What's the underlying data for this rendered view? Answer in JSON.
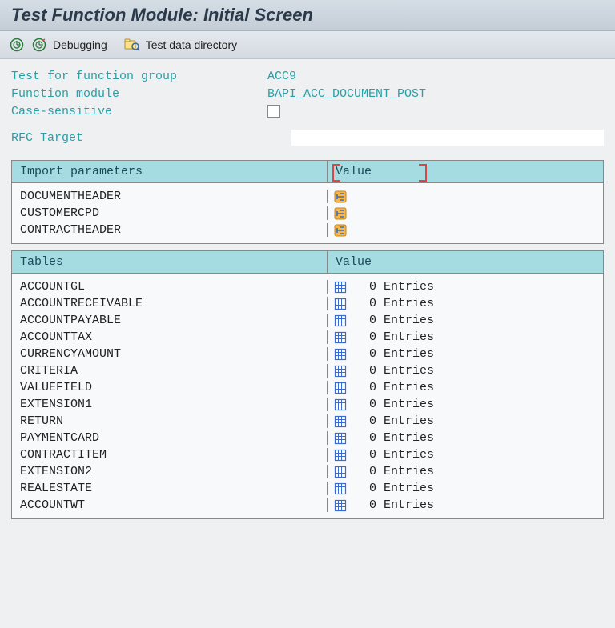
{
  "title": "Test Function Module: Initial Screen",
  "toolbar": {
    "debugging_label": "Debugging",
    "testdata_label": "Test data directory"
  },
  "form": {
    "group_label": "Test for function group",
    "group_value": "ACC9",
    "module_label": "Function module",
    "module_value": "BAPI_ACC_DOCUMENT_POST",
    "case_label": "Case-sensitive"
  },
  "rfc": {
    "label": "RFC Target",
    "value": ""
  },
  "import_section": {
    "header_left": "Import parameters",
    "header_right": "Value",
    "rows": [
      {
        "name": "DOCUMENTHEADER"
      },
      {
        "name": "CUSTOMERCPD"
      },
      {
        "name": "CONTRACTHEADER"
      }
    ]
  },
  "tables_section": {
    "header_left": "Tables",
    "header_right": "Value",
    "entries_suffix": "Entries",
    "rows": [
      {
        "name": "ACCOUNTGL",
        "count": 0
      },
      {
        "name": "ACCOUNTRECEIVABLE",
        "count": 0
      },
      {
        "name": "ACCOUNTPAYABLE",
        "count": 0
      },
      {
        "name": "ACCOUNTTAX",
        "count": 0
      },
      {
        "name": "CURRENCYAMOUNT",
        "count": 0
      },
      {
        "name": "CRITERIA",
        "count": 0
      },
      {
        "name": "VALUEFIELD",
        "count": 0
      },
      {
        "name": "EXTENSION1",
        "count": 0
      },
      {
        "name": "RETURN",
        "count": 0
      },
      {
        "name": "PAYMENTCARD",
        "count": 0
      },
      {
        "name": "CONTRACTITEM",
        "count": 0
      },
      {
        "name": "EXTENSION2",
        "count": 0
      },
      {
        "name": "REALESTATE",
        "count": 0
      },
      {
        "name": "ACCOUNTWT",
        "count": 0
      }
    ]
  },
  "colors": {
    "header_bg": "#a5dce2",
    "teal_text": "#2aa0a6",
    "body_bg": "#f8f9fa"
  }
}
